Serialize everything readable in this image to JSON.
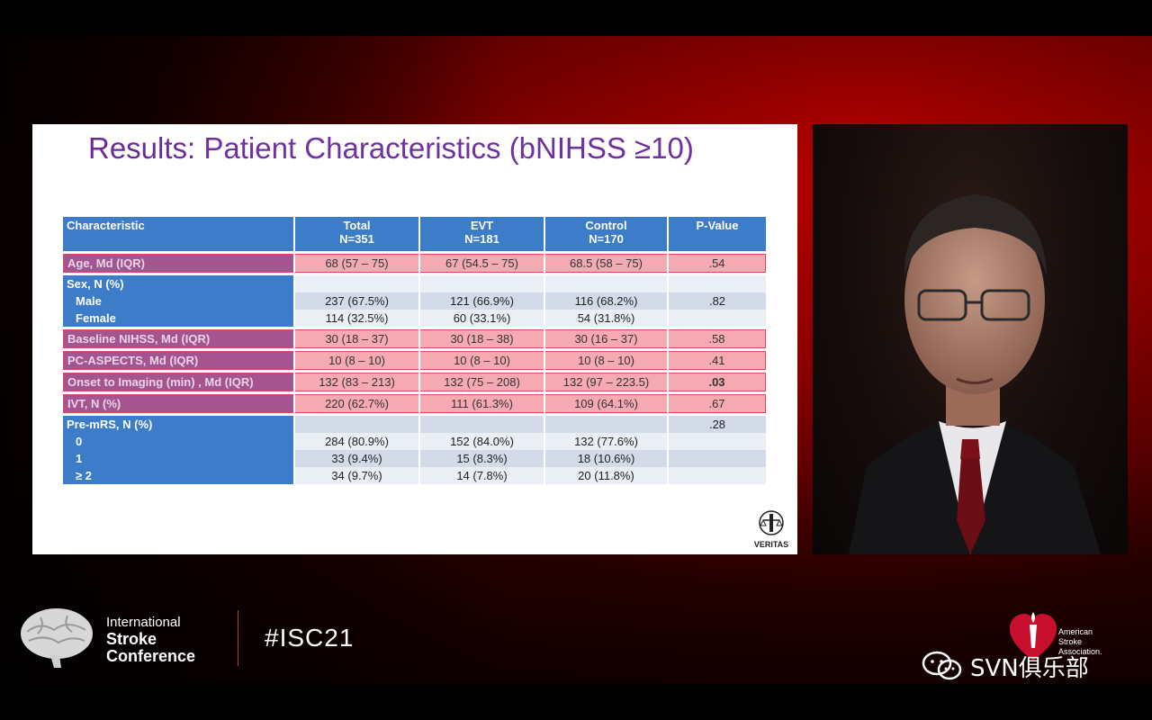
{
  "slide": {
    "title_bold": "Results:",
    "title_rest": "Patient Characteristics (bNIHSS ≥10)",
    "columns": {
      "characteristic": "Characteristic",
      "total": "Total",
      "total_n": "N=351",
      "evt": "EVT",
      "evt_n": "N=181",
      "control": "Control",
      "control_n": "N=170",
      "pvalue": "P-Value"
    },
    "rows": [
      {
        "label": "Age, Md (IQR)",
        "total": "68 (57 – 75)",
        "evt": "67 (54.5 – 75)",
        "control": "68.5 (58 – 75)",
        "p": ".54"
      },
      {
        "label": "Sex, N (%)",
        "total": "",
        "evt": "",
        "control": "",
        "p": ""
      },
      {
        "label": "Male",
        "total": "237 (67.5%)",
        "evt": "121 (66.9%)",
        "control": "116 (68.2%)",
        "p": ".82"
      },
      {
        "label": "Female",
        "total": "114 (32.5%)",
        "evt": "60 (33.1%)",
        "control": "54 (31.8%)",
        "p": ""
      },
      {
        "label": "Baseline NIHSS, Md (IQR)",
        "total": "30 (18 – 37)",
        "evt": "30 (18 – 38)",
        "control": "30 (16 – 37)",
        "p": ".58"
      },
      {
        "label": "PC-ASPECTS, Md (IQR)",
        "total": "10 (8 – 10)",
        "evt": "10 (8 – 10)",
        "control": "10 (8 – 10)",
        "p": ".41"
      },
      {
        "label": "Onset to Imaging (min) , Md (IQR)",
        "total": "132 (83 – 213)",
        "evt": "132 (75 – 208)",
        "control": "132 (97 – 223.5)",
        "p": ".03"
      },
      {
        "label": "IVT, N (%)",
        "total": "220 (62.7%)",
        "evt": "111 (61.3%)",
        "control": "109 (64.1%)",
        "p": ".67"
      },
      {
        "label": "Pre-mRS, N (%)",
        "total": "",
        "evt": "",
        "control": "",
        "p": ".28"
      },
      {
        "label": "0",
        "total": "284 (80.9%)",
        "evt": "152 (84.0%)",
        "control": "132 (77.6%)",
        "p": ""
      },
      {
        "label": "1",
        "total": "33 (9.4%)",
        "evt": "15 (8.3%)",
        "control": "18 (10.6%)",
        "p": ""
      },
      {
        "label": "≥ 2",
        "total": "34 (9.7%)",
        "evt": "14 (7.8%)",
        "control": "20 (11.8%)",
        "p": ""
      }
    ],
    "logo_label": "VERITAS"
  },
  "footer": {
    "conference_line1": "International",
    "conference_line2": "Stroke",
    "conference_line3": "Conference",
    "hashtag": "#ISC21",
    "association_line1": "American",
    "association_line2": "Stroke",
    "association_line3": "Association.",
    "watermark": "SVN俱乐部"
  },
  "colors": {
    "header_blue": "#3c7cc8",
    "highlight_pink": "#f4a9b3",
    "title_purple": "#7030a0",
    "background_red": "#c00000"
  }
}
